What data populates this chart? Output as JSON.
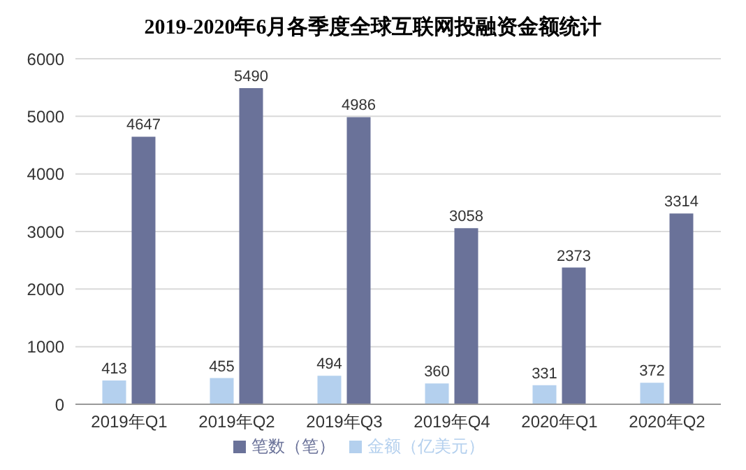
{
  "chart_data": {
    "type": "bar",
    "title": "2019-2020年6月各季度全球互联网投融资金额统计",
    "categories": [
      "2019年Q1",
      "2019年Q2",
      "2019年Q3",
      "2019年Q4",
      "2020年Q1",
      "2020年Q2"
    ],
    "series": [
      {
        "name": "金额（亿美元）",
        "color": "#b4d0ee",
        "values": [
          413,
          455,
          494,
          360,
          331,
          372
        ]
      },
      {
        "name": "笔数（笔）",
        "color": "#6a7299",
        "values": [
          4647,
          5490,
          4986,
          3058,
          2373,
          3314
        ]
      }
    ],
    "ylim": [
      0,
      6000
    ],
    "yticks": [
      0,
      1000,
      2000,
      3000,
      4000,
      5000,
      6000
    ],
    "grid": "y",
    "legend": "bottom",
    "data_labels": true
  }
}
